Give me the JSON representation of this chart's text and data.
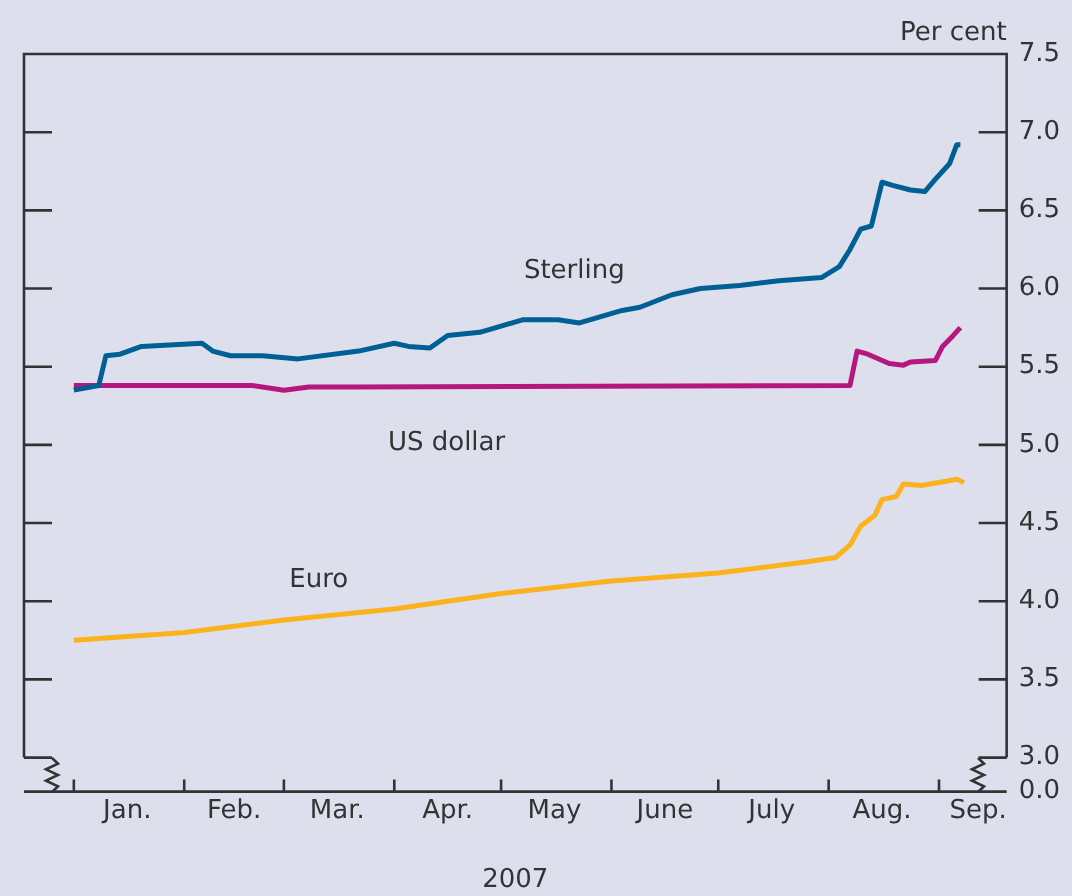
{
  "chart_data": {
    "type": "line",
    "xlabel": "2007",
    "ylabel": "Per cent",
    "xlim": [
      "2006-12-18",
      "2007-09-20"
    ],
    "xticks": [
      {
        "value": "2007-01-01",
        "label": null
      },
      {
        "value": "2007-01-16",
        "label": "Jan."
      },
      {
        "value": "2007-02-01",
        "label": null
      },
      {
        "value": "2007-02-15",
        "label": "Feb."
      },
      {
        "value": "2007-03-01",
        "label": null
      },
      {
        "value": "2007-03-16",
        "label": "Mar."
      },
      {
        "value": "2007-04-01",
        "label": null
      },
      {
        "value": "2007-04-16",
        "label": "Apr."
      },
      {
        "value": "2007-05-01",
        "label": null
      },
      {
        "value": "2007-05-16",
        "label": "May"
      },
      {
        "value": "2007-06-01",
        "label": null
      },
      {
        "value": "2007-06-16",
        "label": "June"
      },
      {
        "value": "2007-07-01",
        "label": null
      },
      {
        "value": "2007-07-16",
        "label": "July"
      },
      {
        "value": "2007-08-01",
        "label": null
      },
      {
        "value": "2007-08-16",
        "label": "Aug."
      },
      {
        "value": "2007-09-01",
        "label": null
      },
      {
        "value": "2007-09-12",
        "label": "Sep."
      }
    ],
    "ylim": [
      3.0,
      7.5
    ],
    "yticks": [
      {
        "value": 3.0,
        "label": "3.0"
      },
      {
        "value": 3.5,
        "label": "3.5"
      },
      {
        "value": 4.0,
        "label": "4.0"
      },
      {
        "value": 4.5,
        "label": "4.5"
      },
      {
        "value": 5.0,
        "label": "5.0"
      },
      {
        "value": 5.5,
        "label": "5.5"
      },
      {
        "value": 6.0,
        "label": "6.0"
      },
      {
        "value": 6.5,
        "label": "6.5"
      },
      {
        "value": 7.0,
        "label": "7.0"
      },
      {
        "value": 7.5,
        "label": "7.5"
      }
    ],
    "grid": false,
    "legend": false,
    "marker": "none",
    "line_style": "solid",
    "series": [
      {
        "name": "Sterling",
        "color": "#005f94",
        "x": [
          "2007-01-01",
          "2007-01-08",
          "2007-01-10",
          "2007-01-14",
          "2007-01-20",
          "2007-02-06",
          "2007-02-09",
          "2007-02-14",
          "2007-02-23",
          "2007-03-05",
          "2007-03-22",
          "2007-04-01",
          "2007-04-05",
          "2007-04-11",
          "2007-04-16",
          "2007-04-25",
          "2007-05-01",
          "2007-05-07",
          "2007-05-17",
          "2007-05-23",
          "2007-05-29",
          "2007-06-04",
          "2007-06-09",
          "2007-06-18",
          "2007-06-26",
          "2007-07-07",
          "2007-07-18",
          "2007-07-30",
          "2007-08-04",
          "2007-08-07",
          "2007-08-10",
          "2007-08-13",
          "2007-08-16",
          "2007-08-19",
          "2007-08-24",
          "2007-08-28",
          "2007-08-31",
          "2007-09-04",
          "2007-09-06",
          "2007-09-07"
        ],
        "values": [
          5.35,
          5.38,
          5.57,
          5.58,
          5.63,
          5.65,
          5.6,
          5.57,
          5.57,
          5.55,
          5.6,
          5.65,
          5.63,
          5.62,
          5.7,
          5.72,
          5.76,
          5.8,
          5.8,
          5.78,
          5.82,
          5.86,
          5.88,
          5.96,
          6.0,
          6.02,
          6.05,
          6.07,
          6.14,
          6.25,
          6.38,
          6.4,
          6.68,
          6.66,
          6.63,
          6.62,
          6.7,
          6.8,
          6.92,
          6.92
        ]
      },
      {
        "name": "US dollar",
        "color": "#b5177f",
        "x": [
          "2007-01-01",
          "2007-02-20",
          "2007-03-01",
          "2007-03-08",
          "2007-03-20",
          "2007-08-07",
          "2007-08-09",
          "2007-08-12",
          "2007-08-18",
          "2007-08-22",
          "2007-08-24",
          "2007-08-31",
          "2007-09-02",
          "2007-09-05",
          "2007-09-07"
        ],
        "values": [
          5.38,
          5.38,
          5.35,
          5.37,
          5.37,
          5.38,
          5.6,
          5.58,
          5.52,
          5.51,
          5.53,
          5.54,
          5.63,
          5.7,
          5.75
        ]
      },
      {
        "name": "Euro",
        "color": "#fbb21c",
        "x": [
          "2007-01-01",
          "2007-02-01",
          "2007-03-01",
          "2007-04-01",
          "2007-05-01",
          "2007-06-01",
          "2007-07-01",
          "2007-07-25",
          "2007-08-03",
          "2007-08-07",
          "2007-08-10",
          "2007-08-14",
          "2007-08-16",
          "2007-08-20",
          "2007-08-22",
          "2007-08-27",
          "2007-09-01",
          "2007-09-06",
          "2007-09-08"
        ],
        "values": [
          3.75,
          3.8,
          3.88,
          3.95,
          4.05,
          4.13,
          4.18,
          4.25,
          4.28,
          4.36,
          4.48,
          4.55,
          4.65,
          4.67,
          4.75,
          4.74,
          4.76,
          4.78,
          4.76
        ]
      }
    ],
    "annotations": [
      "0.0"
    ]
  }
}
